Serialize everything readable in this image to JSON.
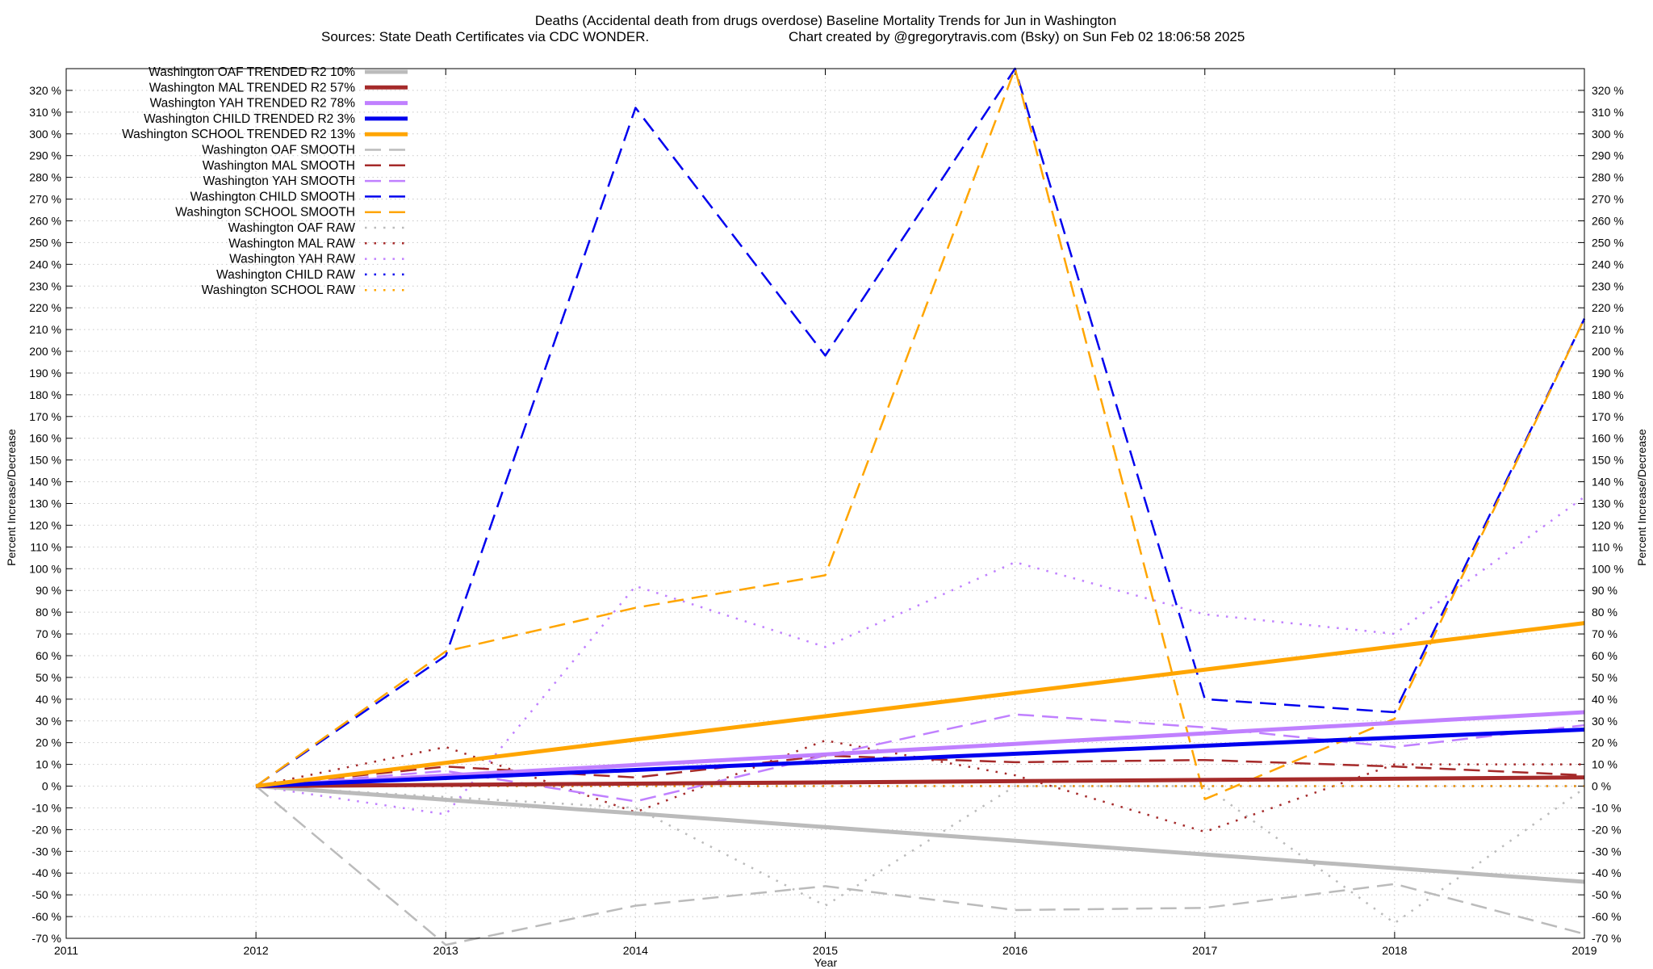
{
  "chart_data": {
    "type": "line",
    "title": "Deaths (Accidental death from drugs overdose)  Baseline Mortality Trends for Jun in Washington",
    "subtitle_left": "Sources: State Death Certificates via CDC WONDER.",
    "subtitle_right": "Chart created by @gregorytravis.com (Bsky) on Sun Feb 02 18:06:58 2025",
    "xlabel": "Year",
    "ylabel_left": "Percent Increase/Decrease",
    "ylabel_right": "Percent Increase/Decrease",
    "xlim": [
      2011,
      2019
    ],
    "ylim": [
      -70,
      330
    ],
    "x_ticks": [
      2011,
      2012,
      2013,
      2014,
      2015,
      2016,
      2017,
      2018,
      2019
    ],
    "y_ticks": [
      -70,
      -60,
      -50,
      -40,
      -30,
      -20,
      -10,
      0,
      10,
      20,
      30,
      40,
      50,
      60,
      70,
      80,
      90,
      100,
      110,
      120,
      130,
      140,
      150,
      160,
      170,
      180,
      190,
      200,
      210,
      220,
      230,
      240,
      250,
      260,
      270,
      280,
      290,
      300,
      310,
      320
    ],
    "y_tick_suffix": " %",
    "grid": true,
    "legend_position": "top-left",
    "series": [
      {
        "name": "Washington OAF TRENDED R2  10%",
        "style": "solid",
        "color": "#bbbbbb",
        "width": 5,
        "x": [
          2012,
          2019
        ],
        "y": [
          0,
          -44
        ]
      },
      {
        "name": "Washington MAL TRENDED R2  57%",
        "style": "solid",
        "color": "#a52a2a",
        "width": 5,
        "x": [
          2012,
          2019
        ],
        "y": [
          0,
          4
        ]
      },
      {
        "name": "Washington YAH TRENDED R2  78%",
        "style": "solid",
        "color": "#c080ff",
        "width": 5,
        "x": [
          2012,
          2019
        ],
        "y": [
          0,
          34
        ]
      },
      {
        "name": "Washington CHILD TRENDED R2   3%",
        "style": "solid",
        "color": "#0000ee",
        "width": 5,
        "x": [
          2012,
          2019
        ],
        "y": [
          0,
          26
        ]
      },
      {
        "name": "Washington SCHOOL TRENDED R2  13%",
        "style": "solid",
        "color": "#ffa500",
        "width": 5,
        "x": [
          2012,
          2019
        ],
        "y": [
          0,
          75
        ]
      },
      {
        "name": "Washington OAF SMOOTH",
        "style": "dashed",
        "color": "#bbbbbb",
        "width": 2.5,
        "x": [
          2012,
          2013,
          2014,
          2015,
          2016,
          2017,
          2018,
          2019
        ],
        "y": [
          0,
          -73,
          -55,
          -46,
          -57,
          -56,
          -45,
          -68
        ]
      },
      {
        "name": "Washington MAL SMOOTH",
        "style": "dashed",
        "color": "#a52a2a",
        "width": 2.5,
        "x": [
          2012,
          2013,
          2014,
          2015,
          2016,
          2017,
          2018,
          2019
        ],
        "y": [
          0,
          9,
          4,
          14,
          11,
          12,
          9,
          5
        ]
      },
      {
        "name": "Washington YAH SMOOTH",
        "style": "dashed",
        "color": "#c080ff",
        "width": 2.5,
        "x": [
          2012,
          2013,
          2014,
          2015,
          2016,
          2017,
          2018,
          2019
        ],
        "y": [
          0,
          7,
          -7,
          14,
          33,
          27,
          18,
          28
        ]
      },
      {
        "name": "Washington CHILD SMOOTH",
        "style": "dashed",
        "color": "#0000ee",
        "width": 2.5,
        "x": [
          2012,
          2013,
          2014,
          2015,
          2016,
          2017,
          2018,
          2019
        ],
        "y": [
          0,
          60,
          312,
          198,
          330,
          40,
          34,
          215
        ]
      },
      {
        "name": "Washington SCHOOL SMOOTH",
        "style": "dashed",
        "color": "#ffa500",
        "width": 2.5,
        "x": [
          2012,
          2013,
          2014,
          2015,
          2016,
          2017,
          2018,
          2019
        ],
        "y": [
          0,
          62,
          82,
          97,
          330,
          -6,
          31,
          215
        ]
      },
      {
        "name": "Washington OAF RAW",
        "style": "dotted",
        "color": "#bbbbbb",
        "width": 2.5,
        "x": [
          2012,
          2013,
          2014,
          2015,
          2016,
          2017,
          2018,
          2019
        ],
        "y": [
          0,
          -5,
          -10,
          -55,
          0,
          0,
          -63,
          -1
        ]
      },
      {
        "name": "Washington MAL RAW",
        "style": "dotted",
        "color": "#a52a2a",
        "width": 2.5,
        "x": [
          2012,
          2013,
          2014,
          2015,
          2016,
          2017,
          2018,
          2019
        ],
        "y": [
          0,
          18,
          -12,
          21,
          5,
          -21,
          10,
          10
        ]
      },
      {
        "name": "Washington YAH RAW",
        "style": "dotted",
        "color": "#c080ff",
        "width": 2.5,
        "x": [
          2012,
          2013,
          2014,
          2015,
          2016,
          2017,
          2018,
          2019
        ],
        "y": [
          0,
          -13,
          92,
          64,
          103,
          79,
          70,
          133
        ]
      },
      {
        "name": "Washington CHILD RAW",
        "style": "dotted",
        "color": "#0000ee",
        "width": 2.5,
        "x": [
          2012,
          2013,
          2014,
          2015,
          2016,
          2017,
          2018,
          2019
        ],
        "y": [
          0,
          0,
          0,
          0,
          0,
          0,
          0,
          0
        ]
      },
      {
        "name": "Washington SCHOOL RAW",
        "style": "dotted",
        "color": "#ffa500",
        "width": 2.5,
        "x": [
          2012,
          2013,
          2014,
          2015,
          2016,
          2017,
          2018,
          2019
        ],
        "y": [
          0,
          0,
          0,
          0,
          0,
          0,
          0,
          0
        ]
      }
    ]
  }
}
